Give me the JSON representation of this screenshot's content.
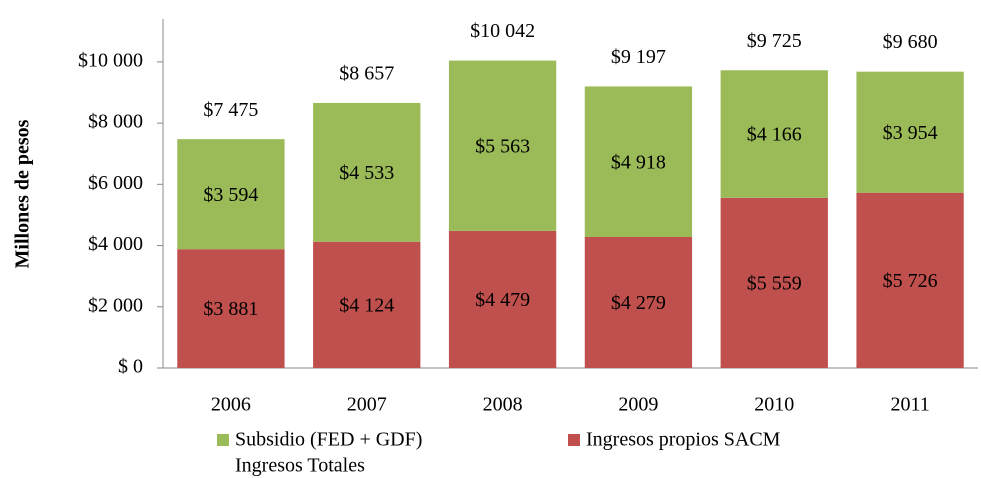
{
  "chart_data": {
    "type": "stacked_bar",
    "y_label": "Millones de pesos",
    "categories": [
      "2006",
      "2007",
      "2008",
      "2009",
      "2010",
      "2011"
    ],
    "series": [
      {
        "name": "Ingresos propios SACM",
        "color": "#c0504d",
        "values": [
          3881,
          4124,
          4479,
          4279,
          5559,
          5726
        ],
        "value_labels": [
          "$3 881",
          "$4 124",
          "$4 479",
          "$4 279",
          "$5 559",
          "$5 726"
        ]
      },
      {
        "name": "Subsidio (FED + GDF)",
        "color": "#9bbb59",
        "values": [
          3594,
          4533,
          5563,
          4918,
          4166,
          3954
        ],
        "value_labels": [
          "$3 594",
          "$4 533",
          "$5 563",
          "$4 918",
          "$4 166",
          "$3 954"
        ]
      }
    ],
    "totals": {
      "name": "Ingresos Totales",
      "values": [
        7475,
        8657,
        10042,
        9197,
        9725,
        9680
      ],
      "value_labels": [
        "$7 475",
        "$8 657",
        "$10 042",
        "$9 197",
        "$9 725",
        "$9 680"
      ]
    },
    "ylim": [
      0,
      11400
    ],
    "yticks": [
      {
        "value": 0,
        "label": "$ 0"
      },
      {
        "value": 2000,
        "label": "$2 000"
      },
      {
        "value": 4000,
        "label": "$4 000"
      },
      {
        "value": 6000,
        "label": "$6 000"
      },
      {
        "value": 8000,
        "label": "$8 000"
      },
      {
        "value": 10000,
        "label": "$10 000"
      }
    ]
  }
}
